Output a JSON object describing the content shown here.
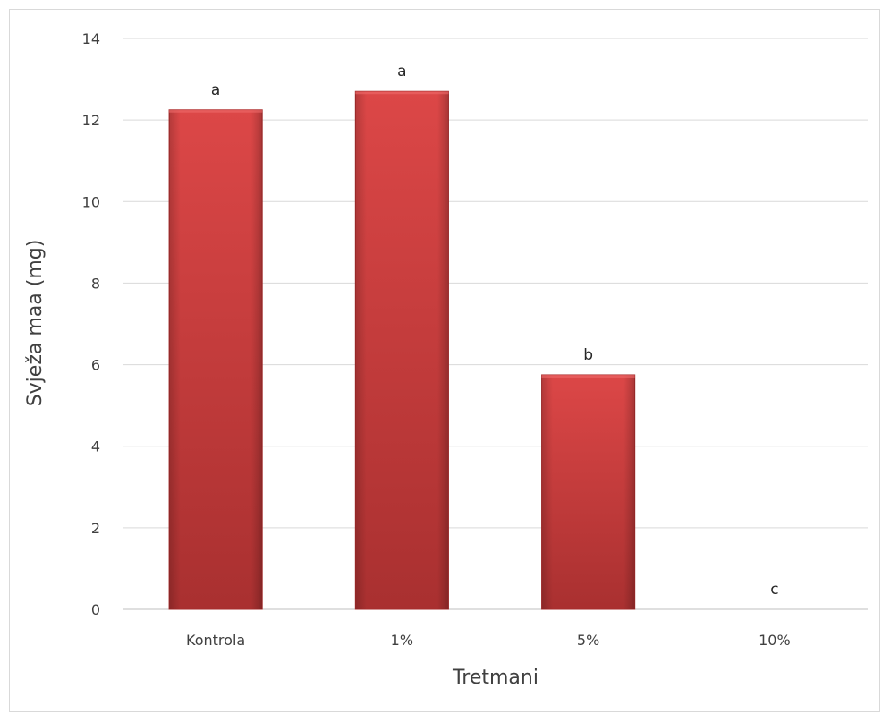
{
  "chart_data": {
    "type": "bar",
    "title": "",
    "xlabel": "Tretmani",
    "ylabel": "Svježa maa (mg)",
    "categories": [
      "Kontrola",
      "1%",
      "5%",
      "10%"
    ],
    "values": [
      12.25,
      12.7,
      5.75,
      0
    ],
    "significance_letters": [
      "a",
      "a",
      "b",
      "c"
    ],
    "ylim": [
      0,
      14
    ],
    "yticks": [
      0,
      2,
      4,
      6,
      8,
      10,
      12,
      14
    ],
    "grid": true,
    "legend": "none",
    "colors": {
      "bar": "#d13c3c",
      "bar_dark": "#a72b2b",
      "grid": "#d9d9d9",
      "axis": "#bfbfbf"
    }
  }
}
